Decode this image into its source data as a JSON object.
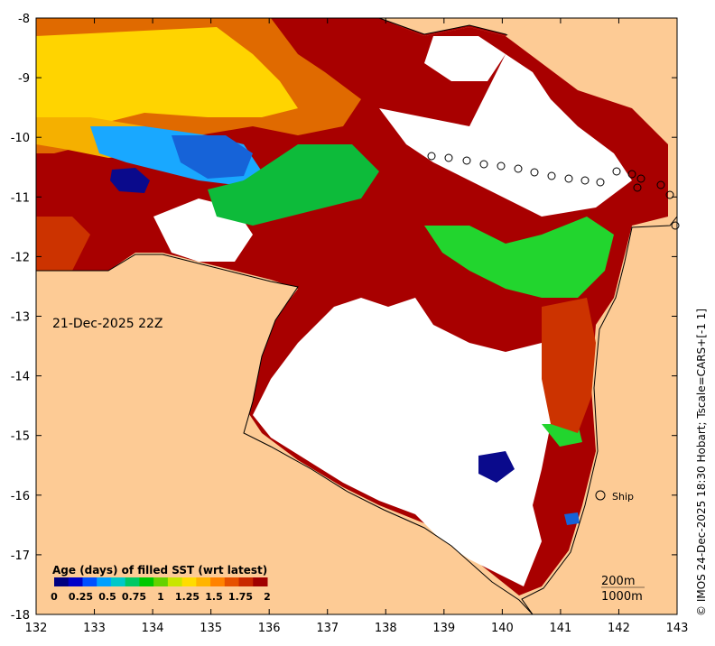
{
  "map": {
    "date_label": "21-Dec-2025 22Z",
    "credit": "© IMOS 24-Dec-2025 18:30 Hobart; Tscale=CARS+[-1 1]",
    "x_ticks": [
      "132",
      "133",
      "134",
      "135",
      "136",
      "137",
      "138",
      "139",
      "140",
      "141",
      "142",
      "143"
    ],
    "y_ticks": [
      "-8",
      "-9",
      "-10",
      "-11",
      "-12",
      "-13",
      "-14",
      "-15",
      "-16",
      "-17",
      "-18"
    ],
    "legend": {
      "title": "Age (days) of filled SST (wrt latest)",
      "ticks": [
        "0",
        "0.25",
        "0.5",
        "0.75",
        "1",
        "1.25",
        "1.5",
        "1.75",
        "2"
      ]
    },
    "ship_label": "Ship",
    "contours": [
      "200m",
      "1000m"
    ],
    "colors": {
      "land": "#fdcb95",
      "cloud": "#ffffff",
      "oldest": "#a80000",
      "old": "#cc3300",
      "mid_old": "#e06a00",
      "yellow": "#ffd400",
      "orange_yellow": "#f5b000",
      "green": "#0dbb3a",
      "light_green": "#22d52e",
      "blue": "#1663d8",
      "cyan": "#19a8ff",
      "navy": "#0a0a8c"
    },
    "colorbar": [
      "#000080",
      "#0000c8",
      "#0050ff",
      "#00a0ff",
      "#00c8c8",
      "#00c864",
      "#00c800",
      "#64d200",
      "#c8e600",
      "#ffdc00",
      "#ffb400",
      "#ff8200",
      "#e65000",
      "#c82800",
      "#a00000"
    ]
  }
}
